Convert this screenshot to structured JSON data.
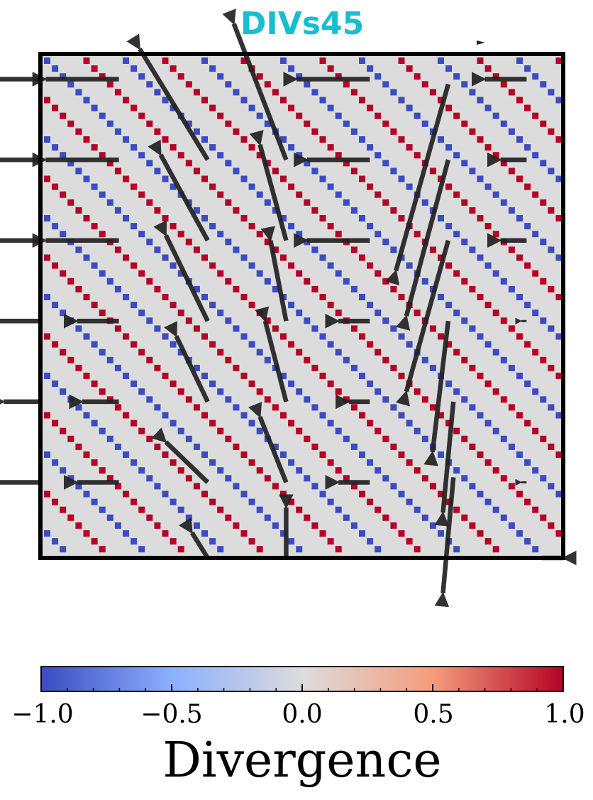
{
  "title": "DIVs45",
  "colors": {
    "title": "#17becf",
    "background": "#dcdcdc",
    "positive": "#b40426",
    "negative": "#3b4cc0",
    "arrow": "#222222"
  },
  "colorbar": {
    "label": "Divergence",
    "colormap": "coolwarm",
    "min": -1.0,
    "max": 1.0,
    "ticks": [
      "−1.0",
      "−0.5",
      "0.0",
      "0.5",
      "1.0"
    ]
  },
  "chart_data": {
    "type": "quiver",
    "title": "DIVs45",
    "xlim": [
      0,
      1
    ],
    "ylim": [
      0,
      1
    ],
    "grid": false,
    "axes_ticks": false,
    "divergence_stripes": {
      "direction": "diagonal",
      "values": [
        -1,
        1
      ]
    },
    "arrow_columns_x": [
      0.0,
      0.15,
      0.32,
      0.47,
      0.63,
      0.78,
      0.93
    ],
    "arrow_rows_y": [
      0.0,
      0.15,
      0.31,
      0.47,
      0.63,
      0.79,
      0.95
    ],
    "vectors": [
      {
        "x": 0.0,
        "y": 0.95,
        "u": -0.14,
        "v": 0.0
      },
      {
        "x": 0.0,
        "y": 0.79,
        "u": -0.14,
        "v": 0.0
      },
      {
        "x": 0.0,
        "y": 0.63,
        "u": -0.14,
        "v": 0.0
      },
      {
        "x": 0.0,
        "y": 0.47,
        "u": -0.08,
        "v": 0.0
      },
      {
        "x": 0.0,
        "y": 0.31,
        "u": -0.07,
        "v": 0.0
      },
      {
        "x": 0.0,
        "y": 0.15,
        "u": -0.08,
        "v": 0.0
      },
      {
        "x": 0.15,
        "y": 0.95,
        "u": -0.14,
        "v": 0.0
      },
      {
        "x": 0.15,
        "y": 0.79,
        "u": -0.14,
        "v": 0.0
      },
      {
        "x": 0.15,
        "y": 0.63,
        "u": -0.14,
        "v": 0.0
      },
      {
        "x": 0.15,
        "y": 0.47,
        "u": -0.08,
        "v": 0.0
      },
      {
        "x": 0.15,
        "y": 0.31,
        "u": -0.07,
        "v": 0.0
      },
      {
        "x": 0.15,
        "y": 0.15,
        "u": -0.08,
        "v": 0.0
      },
      {
        "x": 0.32,
        "y": 0.79,
        "u": -0.13,
        "v": 0.22
      },
      {
        "x": 0.32,
        "y": 0.63,
        "u": -0.09,
        "v": 0.17
      },
      {
        "x": 0.32,
        "y": 0.47,
        "u": -0.08,
        "v": 0.17
      },
      {
        "x": 0.32,
        "y": 0.31,
        "u": -0.06,
        "v": 0.13
      },
      {
        "x": 0.32,
        "y": 0.15,
        "u": -0.08,
        "v": 0.08
      },
      {
        "x": 0.32,
        "y": 0.0,
        "u": -0.03,
        "v": 0.05
      },
      {
        "x": 0.47,
        "y": 0.79,
        "u": -0.1,
        "v": 0.27
      },
      {
        "x": 0.47,
        "y": 0.63,
        "u": -0.05,
        "v": 0.19
      },
      {
        "x": 0.47,
        "y": 0.47,
        "u": -0.03,
        "v": 0.16
      },
      {
        "x": 0.47,
        "y": 0.31,
        "u": -0.04,
        "v": 0.16
      },
      {
        "x": 0.47,
        "y": 0.15,
        "u": -0.05,
        "v": 0.13
      },
      {
        "x": 0.47,
        "y": 0.0,
        "u": 0.0,
        "v": 0.1
      },
      {
        "x": 0.63,
        "y": 0.95,
        "u": -0.14,
        "v": 0.0
      },
      {
        "x": 0.63,
        "y": 0.79,
        "u": -0.12,
        "v": 0.0
      },
      {
        "x": 0.63,
        "y": 0.63,
        "u": -0.12,
        "v": 0.0
      },
      {
        "x": 0.63,
        "y": 0.47,
        "u": -0.06,
        "v": 0.0
      },
      {
        "x": 0.63,
        "y": 0.31,
        "u": -0.04,
        "v": 0.0
      },
      {
        "x": 0.63,
        "y": 0.15,
        "u": -0.06,
        "v": 0.0
      },
      {
        "x": 0.78,
        "y": 0.94,
        "u": -0.1,
        "v": -0.37
      },
      {
        "x": 0.78,
        "y": 0.79,
        "u": -0.08,
        "v": -0.31
      },
      {
        "x": 0.78,
        "y": 0.63,
        "u": -0.08,
        "v": -0.3
      },
      {
        "x": 0.78,
        "y": 0.47,
        "u": -0.03,
        "v": -0.26
      },
      {
        "x": 0.79,
        "y": 0.31,
        "u": -0.02,
        "v": -0.22
      },
      {
        "x": 0.79,
        "y": 0.16,
        "u": -0.02,
        "v": -0.23
      },
      {
        "x": 0.93,
        "y": 0.95,
        "u": -0.08,
        "v": 0.0
      },
      {
        "x": 0.93,
        "y": 0.79,
        "u": -0.05,
        "v": 0.0
      },
      {
        "x": 0.93,
        "y": 0.63,
        "u": -0.05,
        "v": 0.0
      },
      {
        "x": 0.93,
        "y": 0.47,
        "u": -0.01,
        "v": 0.0
      },
      {
        "x": 0.93,
        "y": 0.15,
        "u": -0.01,
        "v": 0.0
      },
      {
        "x": 0.96,
        "y": 0.0,
        "u": 0.04,
        "v": 0.0
      }
    ]
  }
}
